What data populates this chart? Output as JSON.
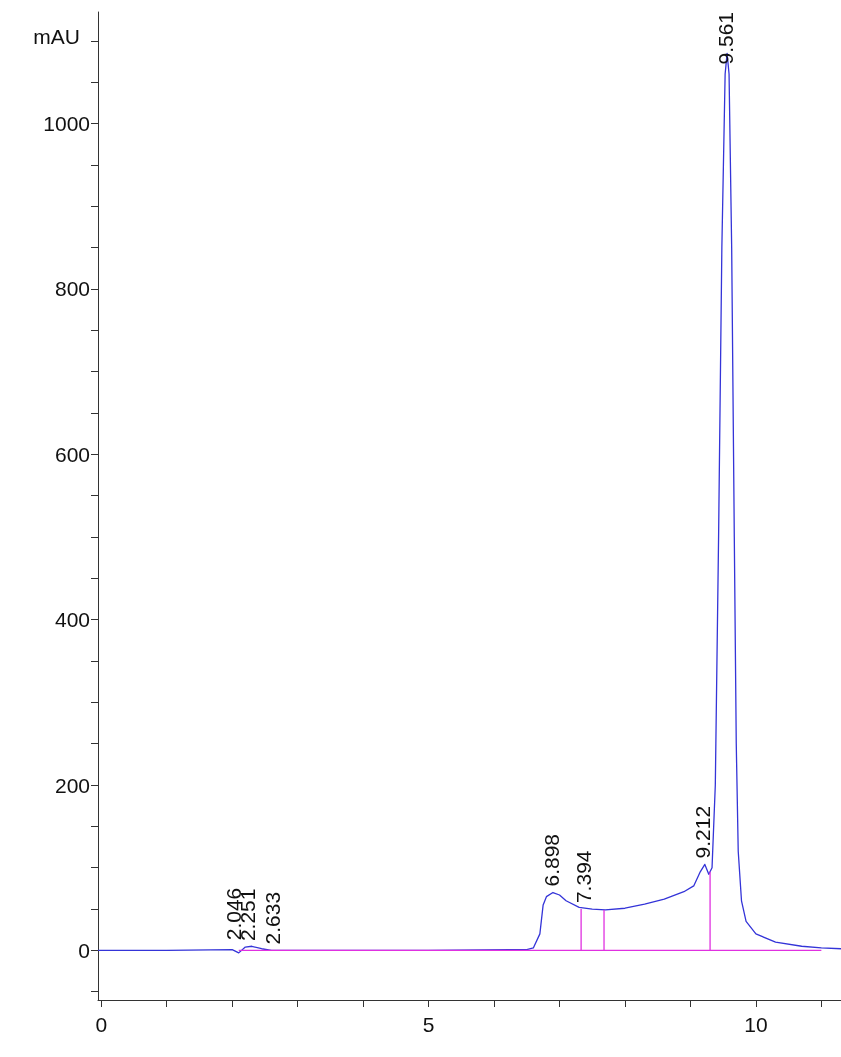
{
  "chart_data": {
    "type": "line",
    "ylabel": "mAU",
    "xlim": [
      -0.05,
      11.3
    ],
    "ylim": [
      -60,
      1135
    ],
    "xticks": [
      0,
      {
        "value": 1,
        "label": null
      },
      {
        "value": 2,
        "label": null
      },
      {
        "value": 3,
        "label": null
      },
      {
        "value": 4,
        "label": null
      },
      5,
      {
        "value": 6,
        "label": null
      },
      {
        "value": 7,
        "label": null
      },
      {
        "value": 8,
        "label": null
      },
      {
        "value": 9,
        "label": null
      },
      10,
      {
        "value": 11,
        "label": null
      }
    ],
    "yticks": [
      {
        "value": -50,
        "label": null
      },
      0,
      {
        "value": 50,
        "label": null
      },
      {
        "value": 100,
        "label": null
      },
      {
        "value": 150,
        "label": null
      },
      200,
      {
        "value": 250,
        "label": null
      },
      {
        "value": 300,
        "label": null
      },
      {
        "value": 350,
        "label": null
      },
      400,
      {
        "value": 450,
        "label": null
      },
      {
        "value": 500,
        "label": null
      },
      {
        "value": 550,
        "label": null
      },
      600,
      {
        "value": 650,
        "label": null
      },
      {
        "value": 700,
        "label": null
      },
      {
        "value": 750,
        "label": null
      },
      800,
      {
        "value": 850,
        "label": null
      },
      {
        "value": 900,
        "label": null
      },
      {
        "value": 950,
        "label": null
      },
      1000,
      {
        "value": 1050,
        "label": null
      },
      {
        "value": 1100,
        "label": null
      }
    ],
    "grid": false,
    "marker": "none",
    "line_style": "solid",
    "series": [
      {
        "color": "#3434d8",
        "x": [
          -0.05,
          1,
          2.0,
          2.1,
          2.2,
          2.3,
          2.45,
          2.6,
          3,
          5,
          6.5,
          6.6,
          6.7,
          6.75,
          6.8,
          6.9,
          7.0,
          7.1,
          7.3,
          7.5,
          7.7,
          8.0,
          8.3,
          8.6,
          8.9,
          9.05,
          9.15,
          9.22,
          9.28,
          9.33,
          9.38,
          9.43,
          9.48,
          9.53,
          9.56,
          9.59,
          9.63,
          9.67,
          9.7,
          9.73,
          9.78,
          9.85,
          10.0,
          10.3,
          10.7,
          11,
          11.3
        ],
        "values": [
          0,
          0,
          1,
          -3,
          4,
          5,
          2,
          0,
          0,
          0,
          1,
          3,
          20,
          55,
          65,
          70,
          67,
          60,
          52,
          50,
          49,
          51,
          56,
          62,
          71,
          78,
          95,
          104,
          92,
          100,
          200,
          500,
          850,
          1060,
          1085,
          1060,
          850,
          500,
          250,
          120,
          60,
          35,
          20,
          10,
          5,
          3,
          2
        ]
      },
      {
        "color": "#e030e0",
        "x": [
          2.1,
          11.0
        ],
        "values": [
          0,
          0
        ]
      },
      {
        "color": "#e030e0",
        "x": [
          7.33,
          7.33
        ],
        "values": [
          0,
          50
        ]
      },
      {
        "color": "#e030e0",
        "x": [
          7.68,
          7.68
        ],
        "values": [
          0,
          49
        ]
      },
      {
        "color": "#e030e0",
        "x": [
          9.3,
          9.3
        ],
        "values": [
          0,
          95
        ]
      }
    ],
    "annotations": [
      {
        "text": "2.046",
        "x": 2.046,
        "y": 5
      },
      {
        "text": "2.251",
        "x": 2.251,
        "y": 4
      },
      {
        "text": "2.633",
        "x": 2.633,
        "y": 0
      },
      {
        "text": "6.898",
        "x": 6.898,
        "y": 70
      },
      {
        "text": "7.394",
        "x": 7.394,
        "y": 50
      },
      {
        "text": "9.212",
        "x": 9.212,
        "y": 104
      },
      {
        "text": "9.561",
        "x": 9.561,
        "y": 1085
      }
    ]
  }
}
